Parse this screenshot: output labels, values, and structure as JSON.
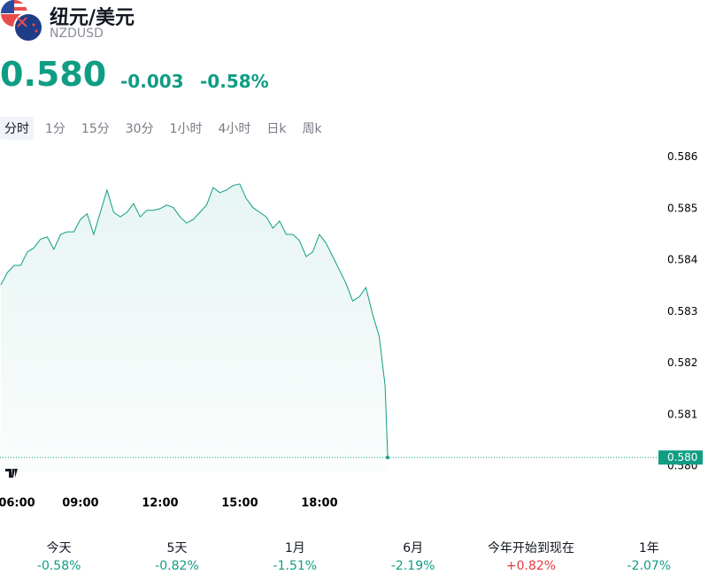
{
  "header": {
    "title": "纽元/美元",
    "symbol": "NZDUSD",
    "price": "0.580",
    "change": "-0.003",
    "change_pct": "-0.58%",
    "color": "#0f9d83"
  },
  "tabs": {
    "items": [
      "分时",
      "1分",
      "15分",
      "30分",
      "1小时",
      "4小时",
      "日k",
      "周k"
    ],
    "selected": 0
  },
  "chart_data": {
    "type": "line",
    "x": [
      6,
      6.25,
      6.5,
      6.75,
      7,
      7.25,
      7.5,
      7.75,
      8,
      8.25,
      8.5,
      8.75,
      9,
      9.25,
      9.5,
      9.75,
      10,
      10.25,
      10.5,
      10.75,
      11,
      11.25,
      11.5,
      11.75,
      12,
      12.25,
      12.5,
      12.75,
      13,
      13.25,
      13.5,
      13.75,
      14,
      14.25,
      14.5,
      14.75,
      15,
      15.25,
      15.5,
      15.75,
      16,
      16.25,
      16.5,
      16.75,
      17,
      17.25,
      17.5,
      17.75,
      18,
      18.25,
      18.5,
      18.75,
      19,
      19.25,
      19.5,
      19.75,
      20,
      20.25,
      20.37,
      20.47,
      20.57
    ],
    "series": [
      {
        "name": "NZDUSD",
        "color": "#0f9d83",
        "values": [
          0.58352,
          0.58376,
          0.5839,
          0.5839,
          0.58416,
          0.58424,
          0.58441,
          0.58445,
          0.58421,
          0.5845,
          0.58455,
          0.58455,
          0.58479,
          0.5849,
          0.5845,
          0.58493,
          0.58536,
          0.58493,
          0.58484,
          0.58493,
          0.5851,
          0.58484,
          0.58497,
          0.58497,
          0.585,
          0.58507,
          0.58502,
          0.58484,
          0.58472,
          0.58479,
          0.58493,
          0.58507,
          0.58541,
          0.58531,
          0.58536,
          0.58545,
          0.58548,
          0.58519,
          0.58502,
          0.58493,
          0.58484,
          0.58462,
          0.58476,
          0.5845,
          0.5845,
          0.58438,
          0.58407,
          0.58416,
          0.5845,
          0.58433,
          0.58407,
          0.58381,
          0.58355,
          0.58321,
          0.58329,
          0.58347,
          0.58295,
          0.58252,
          0.582,
          0.58157,
          0.58017
        ]
      }
    ],
    "xlim": [
      5.97,
      30.7
    ],
    "xticks": [
      {
        "value": 6,
        "label": "06:00"
      },
      {
        "value": 9,
        "label": "09:00"
      },
      {
        "value": 12,
        "label": "12:00"
      },
      {
        "value": 15,
        "label": "15:00"
      },
      {
        "value": 18,
        "label": "18:00"
      }
    ],
    "ylim": [
      0.5799,
      0.5862
    ],
    "yticks": [
      {
        "value": 0.58,
        "label": "0.580"
      },
      0.581,
      0.582,
      0.583,
      0.584,
      0.585,
      0.586
    ],
    "last_label": "0.580"
  },
  "performance": [
    {
      "label": "今天",
      "value": "-0.58%",
      "color": "#0f9d83"
    },
    {
      "label": "5天",
      "value": "-0.82%",
      "color": "#0f9d83"
    },
    {
      "label": "1月",
      "value": "-1.51%",
      "color": "#0f9d83"
    },
    {
      "label": "6月",
      "value": "-2.19%",
      "color": "#0f9d83"
    },
    {
      "label": "今年开始到现在",
      "value": "+0.82%",
      "color": "#e5393f"
    },
    {
      "label": "1年",
      "value": "-2.07%",
      "color": "#0f9d83"
    }
  ]
}
